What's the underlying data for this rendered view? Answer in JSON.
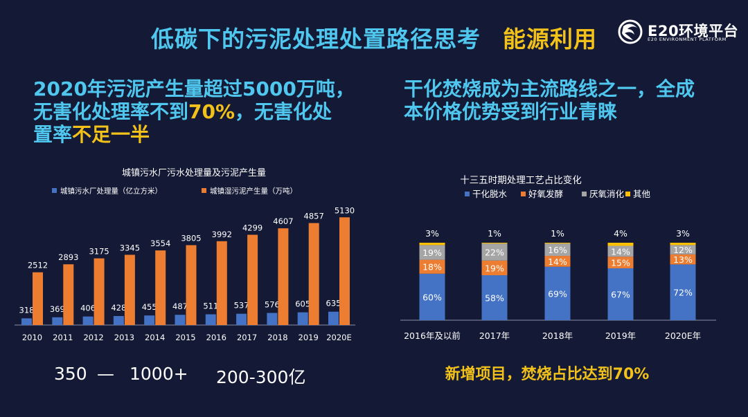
{
  "header": {
    "title_main": "低碳下的污泥处理处置路径思考",
    "title_accent": "能源利用",
    "logo_text": "E20环境平台",
    "logo_subtext": "E20 ENVIRONMENT PLATFORM",
    "colors": {
      "cyan": "#4fc7ee",
      "yellow": "#f3c21a",
      "background": "#141a36"
    }
  },
  "left_headline": {
    "line1": "2020年污泥产生量超过5000万吨，",
    "line2_a": "无害化处理率不到",
    "line2_b": "70%",
    "line2_c": "，无害化处",
    "line3_a": "置率",
    "line3_b": "不足一半"
  },
  "right_headline": {
    "line1": "干化焚烧成为主流路线之一，全成",
    "line2": "本价格优势受到行业青睐"
  },
  "stats": {
    "range_a": "350",
    "dash": "—",
    "range_b": "1000+",
    "cost": "200-300亿"
  },
  "bottom_note": "新增项目，焚烧占比达到70%",
  "chart_data": [
    {
      "type": "bar",
      "title": "城镇污水厂污水处理量及污泥产生量",
      "categories": [
        "2010",
        "2011",
        "2012",
        "2013",
        "2014",
        "2015",
        "2016",
        "2017",
        "2018",
        "2019",
        "2020E"
      ],
      "series": [
        {
          "name": "城镇污水厂处理量（亿立方米）",
          "color": "#4472c4",
          "values": [
            318,
            369,
            406,
            428,
            455,
            487,
            511,
            537,
            576,
            605,
            635
          ]
        },
        {
          "name": "城镇湿污泥产生量（万吨）",
          "color": "#ed7d31",
          "values": [
            2512,
            2893,
            3175,
            3345,
            3554,
            3805,
            3992,
            4299,
            4607,
            4857,
            5130
          ]
        }
      ],
      "ylim": [
        0,
        5600
      ],
      "grid": false,
      "legend": "top"
    },
    {
      "type": "bar",
      "stacked": true,
      "title": "十三五时期处理工艺占比变化",
      "categories": [
        "2016年及以前",
        "2017年",
        "2018年",
        "2019年",
        "2020E年"
      ],
      "series": [
        {
          "name": "干化脱水",
          "color": "#4472c4",
          "values": [
            60,
            58,
            69,
            67,
            72
          ]
        },
        {
          "name": "好氧发酵",
          "color": "#ed7d31",
          "values": [
            18,
            19,
            14,
            15,
            13
          ]
        },
        {
          "name": "厌氧消化",
          "color": "#a5a5a5",
          "values": [
            19,
            22,
            16,
            14,
            12
          ]
        },
        {
          "name": "其他",
          "color": "#ffc000",
          "values": [
            3,
            1,
            1,
            4,
            3
          ]
        }
      ],
      "ylim": [
        0,
        100
      ],
      "grid": false,
      "legend": "top"
    }
  ]
}
